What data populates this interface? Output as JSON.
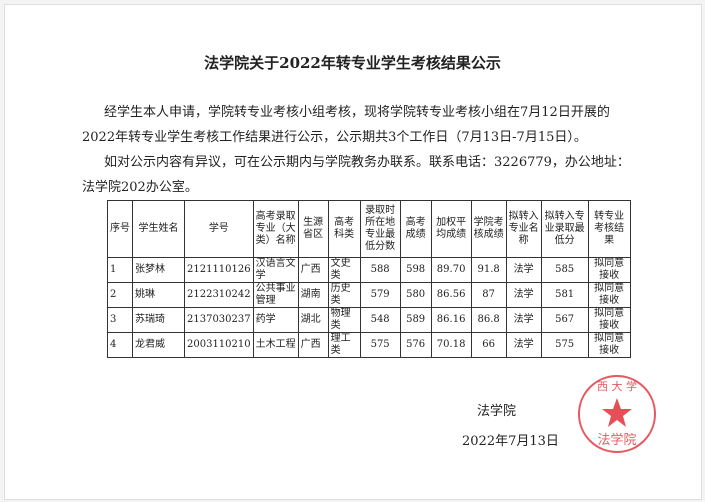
{
  "title": "法学院关于2022年转专业学生考核结果公示",
  "paragraphs": [
    "经学生本人申请，学院转专业考核小组考核，现将学院转专业考核小组在7月12日开展的2022年转专业学生考核工作结果进行公示，公示期共3个工作日（7月13日-7月15日）。",
    "如对公示内容有异议，可在公示期内与学院教务办联系。联系电话：3226779，办公地址：法学院202办公室。"
  ],
  "table": {
    "headers": [
      "序号",
      "学生姓名",
      "学号",
      "高考录取专业（大类）名称",
      "生源省区",
      "高考科类",
      "录取时所在地专业最低分数",
      "高考成绩",
      "加权平均成绩",
      "学院考核成绩",
      "拟转入专业名称",
      "拟转入专业录取最低分",
      "转专业考核结果"
    ],
    "rows": [
      [
        "1",
        "张梦林",
        "2121110126",
        "汉语言文学",
        "广西",
        "文史类",
        "588",
        "598",
        "89.70",
        "91.8",
        "法学",
        "585",
        "拟同意接收"
      ],
      [
        "2",
        "姚琳",
        "2122310242",
        "公共事业管理",
        "湖南",
        "历史类",
        "579",
        "580",
        "86.56",
        "87",
        "法学",
        "581",
        "拟同意接收"
      ],
      [
        "3",
        "苏瑞琦",
        "2137030237",
        "药学",
        "湖北",
        "物理类",
        "548",
        "589",
        "86.16",
        "86.8",
        "法学",
        "567",
        "拟同意接收"
      ],
      [
        "4",
        "龙君威",
        "2003110210",
        "土木工程",
        "广西",
        "理工类",
        "575",
        "576",
        "70.18",
        "66",
        "法学",
        "575",
        "拟同意接收"
      ]
    ]
  },
  "signature": "法学院",
  "date": "2022年7月13日",
  "seal": {
    "text": "广西大学 法学院",
    "color": "#e0303a"
  }
}
